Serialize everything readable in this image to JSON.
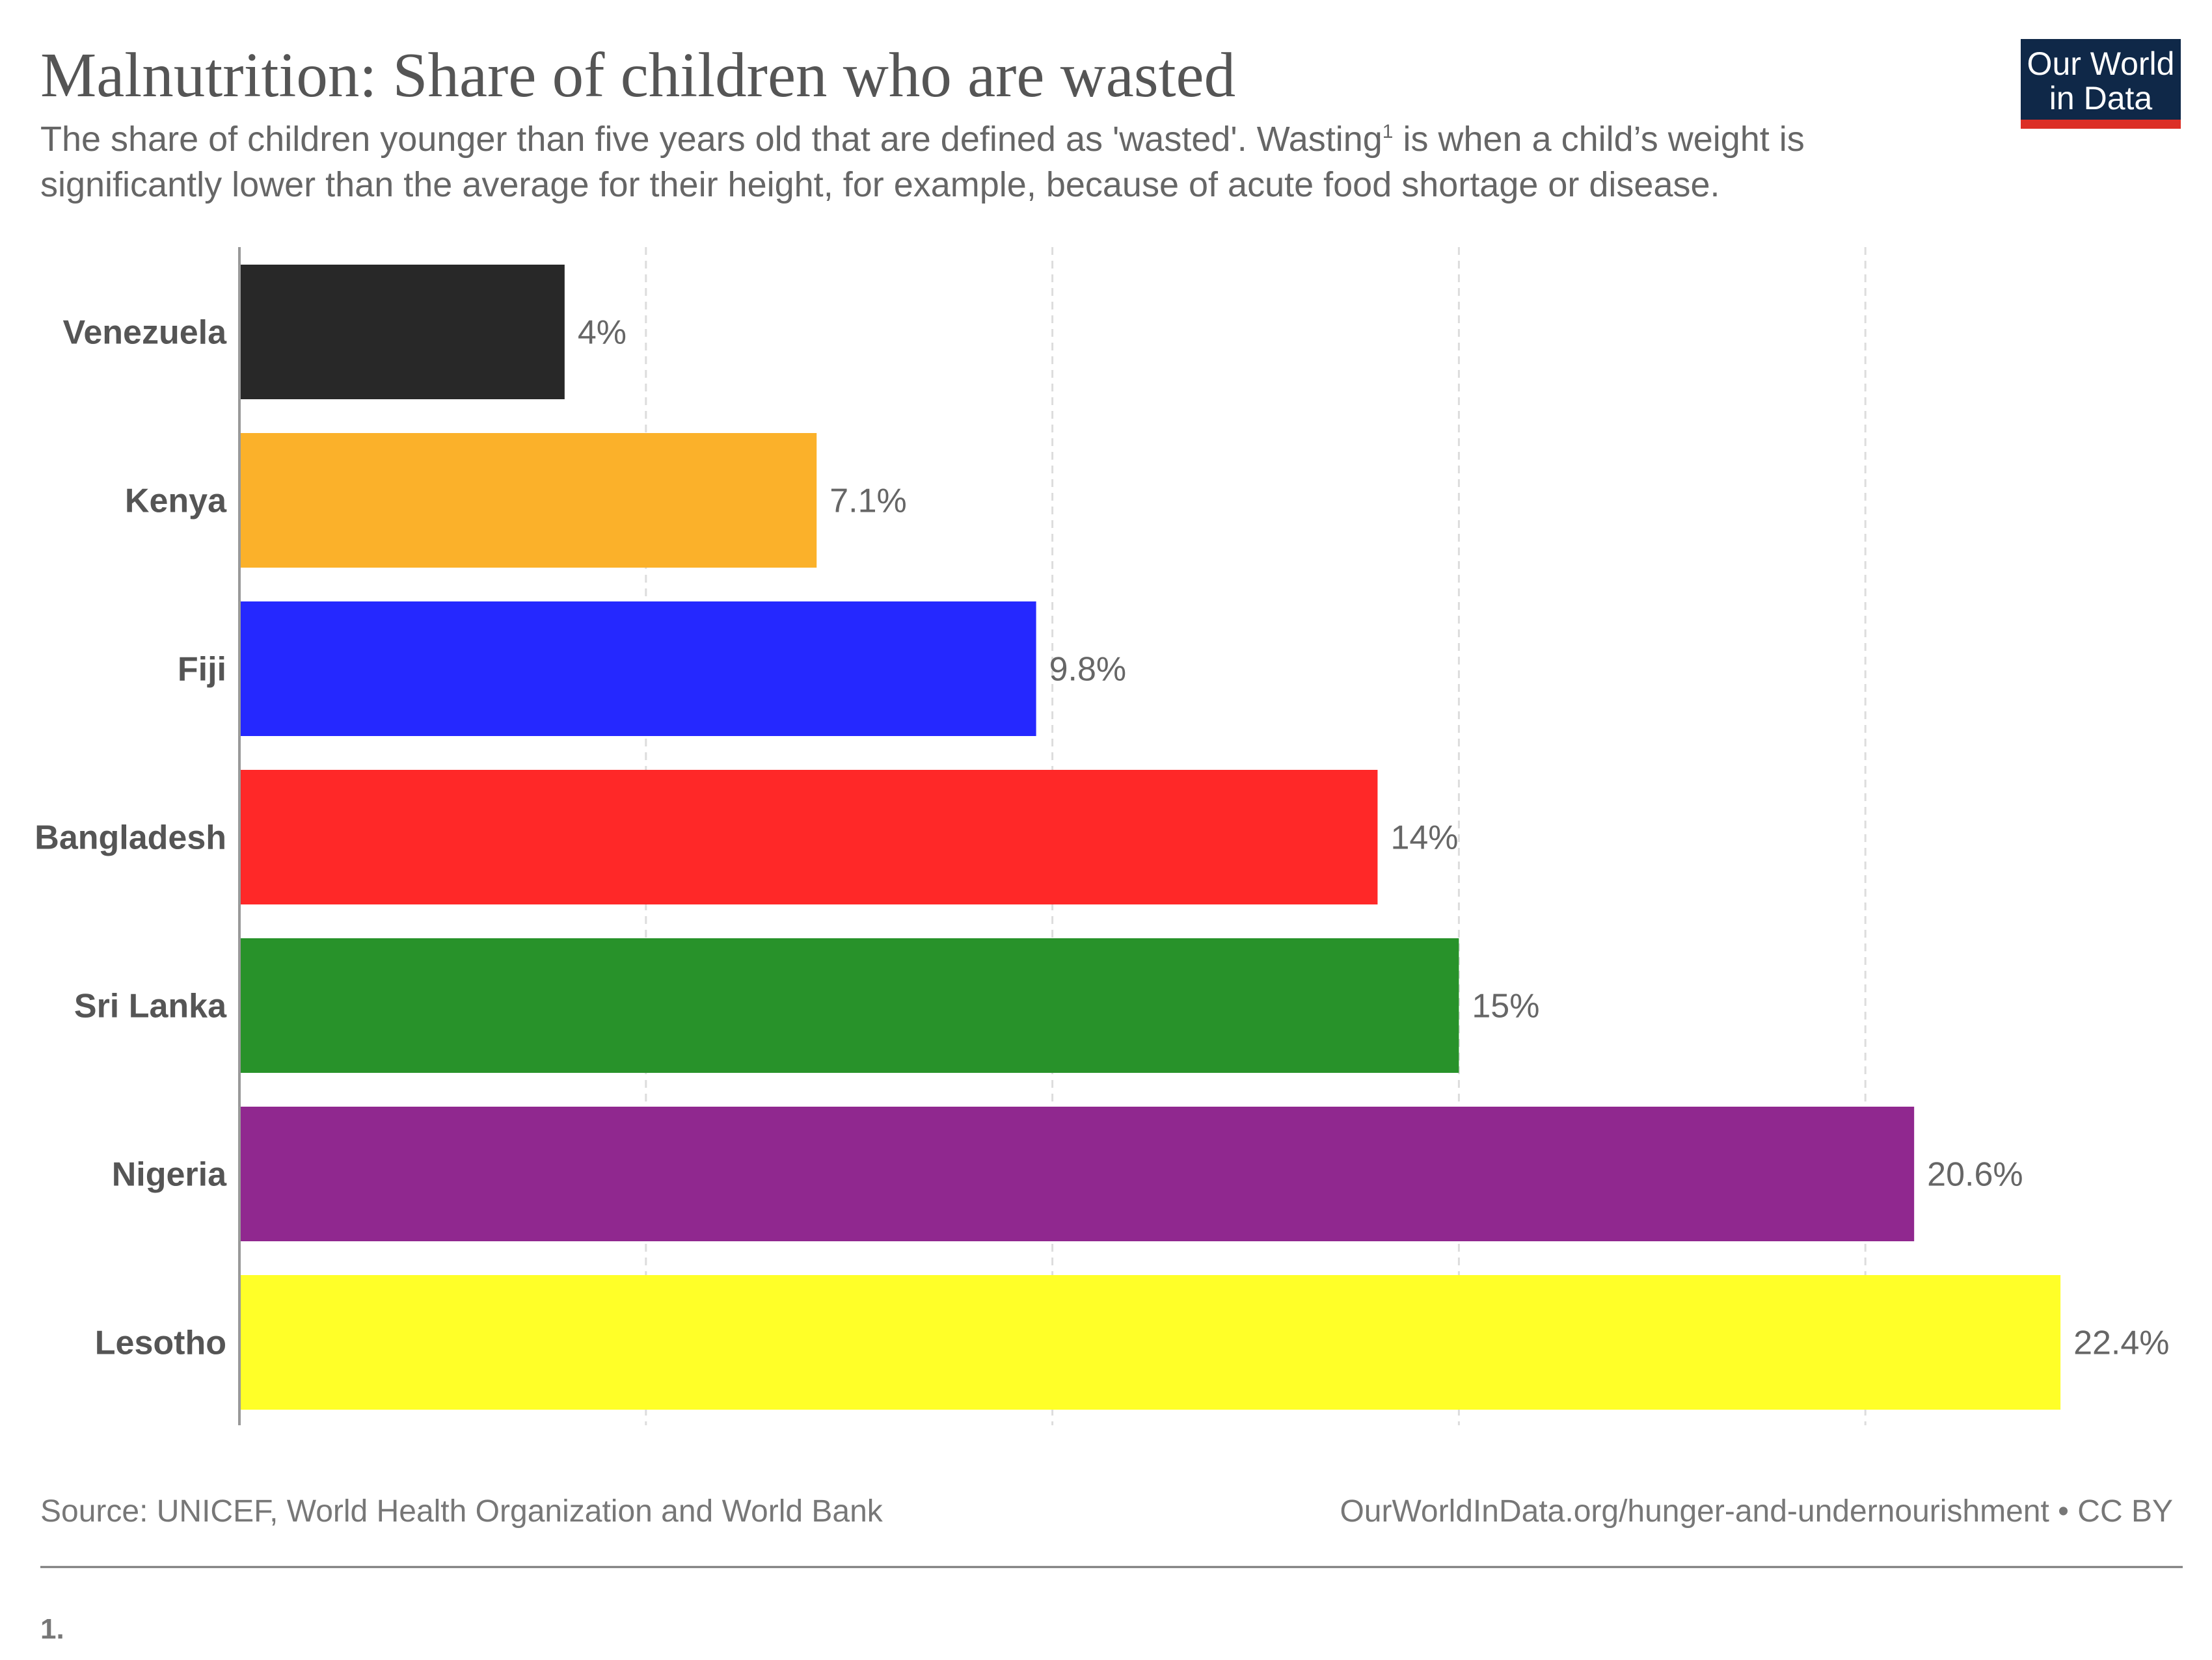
{
  "header": {
    "title": "Malnutrition: Share of children who are wasted",
    "subtitle_line1_pre": "The share of children younger than five years old that are defined as 'wasted'. Wasting",
    "subtitle_sup": "1",
    "subtitle_line1_post": " is when a child’s weight is",
    "subtitle_line2": "significantly lower than the average for their height, for example, because of acute food shortage or disease."
  },
  "logo": {
    "line1": "Our World",
    "line2": "in Data",
    "bg_color": "#0f2848",
    "accent_color": "#dc2f26"
  },
  "chart_data": {
    "type": "bar",
    "orientation": "horizontal",
    "categories": [
      "Venezuela",
      "Kenya",
      "Fiji",
      "Bangladesh",
      "Sri Lanka",
      "Nigeria",
      "Lesotho"
    ],
    "values": [
      4,
      7.1,
      9.8,
      14,
      15,
      20.6,
      22.4
    ],
    "value_labels": [
      "4%",
      "7.1%",
      "9.8%",
      "14%",
      "15%",
      "20.6%",
      "22.4%"
    ],
    "colors": [
      "#282828",
      "#fbb12a",
      "#2528ff",
      "#ff2828",
      "#28922a",
      "#90288f",
      "#ffff28"
    ],
    "xlim": [
      0,
      25
    ],
    "grid_ticks": [
      0,
      5,
      10,
      15,
      20
    ],
    "grid": true
  },
  "footer": {
    "source": "Source: UNICEF, World Health Organization and World Bank",
    "url": "OurWorldInData.org/hunger-and-undernourishment • CC BY",
    "footnote": "1."
  }
}
